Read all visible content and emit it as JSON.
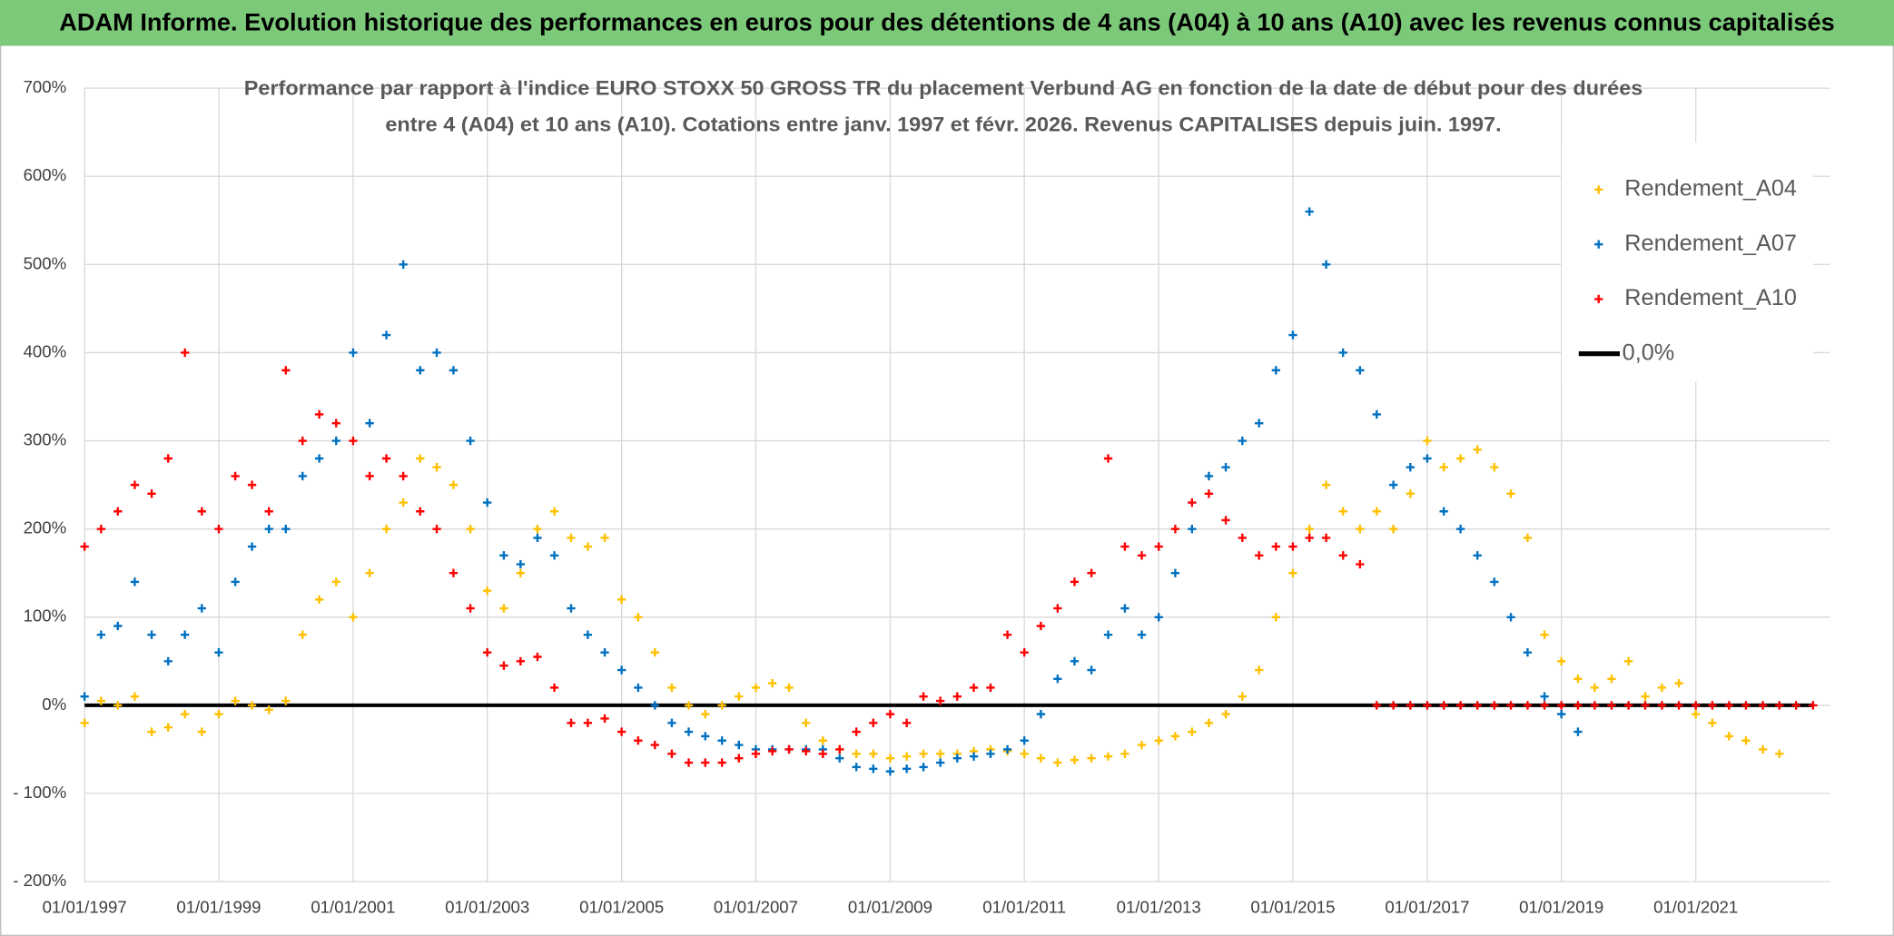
{
  "chart_data": {
    "type": "scatter",
    "title": "ADAM Informe. Evolution historique des performances en euros pour des détentions de 4 ans (A04) à 10 ans (A10) avec les revenus connus capitalisés",
    "subtitle": [
      "Performance par rapport à l'indice EURO STOXX 50 GROSS TR  du placement Verbund AG en fonction de la date de début pour des durées",
      "entre 4 (A04) et 10 ans (A10). Cotations entre janv. 1997 et févr. 2026. Revenus CAPITALISES depuis juin. 1997."
    ],
    "x": [
      "1997-01-01",
      "1997-04-01",
      "1997-07-01",
      "1997-10-01",
      "1998-01-01",
      "1998-04-01",
      "1998-07-01",
      "1998-10-01",
      "1999-01-01",
      "1999-04-01",
      "1999-07-01",
      "1999-10-01",
      "2000-01-01",
      "2000-04-01",
      "2000-07-01",
      "2000-10-01",
      "2001-01-01",
      "2001-04-01",
      "2001-07-01",
      "2001-10-01",
      "2002-01-01",
      "2002-04-01",
      "2002-07-01",
      "2002-10-01",
      "2003-01-01",
      "2003-04-01",
      "2003-07-01",
      "2003-10-01",
      "2004-01-01",
      "2004-04-01",
      "2004-07-01",
      "2004-10-01",
      "2005-01-01",
      "2005-04-01",
      "2005-07-01",
      "2005-10-01",
      "2006-01-01",
      "2006-04-01",
      "2006-07-01",
      "2006-10-01",
      "2007-01-01",
      "2007-04-01",
      "2007-07-01",
      "2007-10-01",
      "2008-01-01",
      "2008-04-01",
      "2008-07-01",
      "2008-10-01",
      "2009-01-01",
      "2009-04-01",
      "2009-07-01",
      "2009-10-01",
      "2010-01-01",
      "2010-04-01",
      "2010-07-01",
      "2010-10-01",
      "2011-01-01",
      "2011-04-01",
      "2011-07-01",
      "2011-10-01",
      "2012-01-01",
      "2012-04-01",
      "2012-07-01",
      "2012-10-01",
      "2013-01-01",
      "2013-04-01",
      "2013-07-01",
      "2013-10-01",
      "2014-01-01",
      "2014-04-01",
      "2014-07-01",
      "2014-10-01",
      "2015-01-01",
      "2015-04-01",
      "2015-07-01",
      "2015-10-01",
      "2016-01-01",
      "2016-04-01",
      "2016-07-01",
      "2016-10-01",
      "2017-01-01",
      "2017-04-01",
      "2017-07-01",
      "2017-10-01",
      "2018-01-01",
      "2018-04-01",
      "2018-07-01",
      "2018-10-01",
      "2019-01-01",
      "2019-04-01",
      "2019-07-01",
      "2019-10-01",
      "2020-01-01",
      "2020-04-01",
      "2020-07-01",
      "2020-10-01",
      "2021-01-01",
      "2021-04-01",
      "2021-07-01",
      "2021-10-01",
      "2022-01-01",
      "2022-04-01",
      "2022-07-01",
      "2022-10-01"
    ],
    "series": [
      {
        "name": "Rendement_A04",
        "color": "#ffc000",
        "values": [
          -20,
          5,
          0,
          10,
          -30,
          -25,
          -10,
          -30,
          -10,
          5,
          0,
          -5,
          5,
          80,
          120,
          140,
          100,
          150,
          200,
          230,
          280,
          270,
          250,
          200,
          130,
          110,
          150,
          200,
          220,
          190,
          180,
          190,
          120,
          100,
          60,
          20,
          0,
          -10,
          0,
          10,
          20,
          25,
          20,
          -20,
          -40,
          -50,
          -55,
          -55,
          -60,
          -58,
          -55,
          -55,
          -55,
          -52,
          -50,
          -52,
          -55,
          -60,
          -65,
          -62,
          -60,
          -58,
          -55,
          -45,
          -40,
          -35,
          -30,
          -20,
          -10,
          10,
          40,
          100,
          150,
          200,
          250,
          220,
          200,
          220,
          200,
          240,
          300,
          270,
          280,
          290,
          270,
          240,
          190,
          80,
          50,
          30,
          20,
          30,
          50,
          10,
          20,
          25,
          -10,
          -20,
          -35,
          -40,
          -50,
          -55,
          null,
          null
        ]
      },
      {
        "name": "Rendement_A07",
        "color": "#0070c0",
        "values": [
          10,
          80,
          90,
          140,
          80,
          50,
          80,
          110,
          60,
          140,
          180,
          200,
          200,
          260,
          280,
          300,
          400,
          320,
          420,
          500,
          380,
          400,
          380,
          300,
          230,
          170,
          160,
          190,
          170,
          110,
          80,
          60,
          40,
          20,
          0,
          -20,
          -30,
          -35,
          -40,
          -45,
          -50,
          -50,
          -50,
          -50,
          -50,
          -60,
          -70,
          -72,
          -75,
          -72,
          -70,
          -65,
          -60,
          -58,
          -55,
          -50,
          -40,
          -10,
          30,
          50,
          40,
          80,
          110,
          80,
          100,
          150,
          200,
          260,
          270,
          300,
          320,
          380,
          420,
          560,
          500,
          400,
          380,
          330,
          250,
          270,
          280,
          220,
          200,
          170,
          140,
          100,
          60,
          10,
          -10,
          -30,
          null,
          null,
          null,
          null,
          null,
          null,
          null,
          null,
          null,
          null,
          null,
          null,
          null,
          null
        ]
      },
      {
        "name": "Rendement_A10",
        "color": "#ff0000",
        "values": [
          180,
          200,
          220,
          250,
          240,
          280,
          400,
          220,
          200,
          260,
          250,
          220,
          380,
          300,
          330,
          320,
          300,
          260,
          280,
          260,
          220,
          200,
          150,
          110,
          60,
          45,
          50,
          55,
          20,
          -20,
          -20,
          -15,
          -30,
          -40,
          -45,
          -55,
          -65,
          -65,
          -65,
          -60,
          -55,
          -52,
          -50,
          -52,
          -55,
          -50,
          -30,
          -20,
          -10,
          -20,
          10,
          5,
          10,
          20,
          20,
          80,
          60,
          90,
          110,
          140,
          150,
          280,
          180,
          170,
          180,
          200,
          230,
          240,
          210,
          190,
          170,
          180,
          180,
          190,
          190,
          170,
          160,
          0,
          0,
          0,
          0,
          0,
          0,
          0,
          0,
          0,
          0,
          0,
          0,
          0,
          0,
          0,
          0,
          0,
          0,
          0,
          0,
          0,
          0,
          0,
          0,
          0,
          0,
          0
        ]
      },
      {
        "name": "0,0%",
        "color": "#000000",
        "type": "line",
        "x": [
          "1997-01-01",
          "2022-10-01"
        ],
        "values": [
          0,
          0
        ]
      }
    ],
    "xlim": [
      "1997-01-01",
      "2023-01-01"
    ],
    "xticks": [
      {
        "value": "1997-01-01",
        "label": "01/01/1997"
      },
      {
        "value": "1999-01-01",
        "label": "01/01/1999"
      },
      {
        "value": "2001-01-01",
        "label": "01/01/2001"
      },
      {
        "value": "2003-01-01",
        "label": "01/01/2003"
      },
      {
        "value": "2005-01-01",
        "label": "01/01/2005"
      },
      {
        "value": "2007-01-01",
        "label": "01/01/2007"
      },
      {
        "value": "2009-01-01",
        "label": "01/01/2009"
      },
      {
        "value": "2011-01-01",
        "label": "01/01/2011"
      },
      {
        "value": "2013-01-01",
        "label": "01/01/2013"
      },
      {
        "value": "2015-01-01",
        "label": "01/01/2015"
      },
      {
        "value": "2017-01-01",
        "label": "01/01/2017"
      },
      {
        "value": "2019-01-01",
        "label": "01/01/2019"
      },
      {
        "value": "2021-01-01",
        "label": "01/01/2021"
      }
    ],
    "ylim": [
      -200,
      700
    ],
    "yticks": [
      {
        "value": -200,
        "label": "- 200%"
      },
      {
        "value": -100,
        "label": "- 100%"
      },
      {
        "value": 0,
        "label": "0%"
      },
      {
        "value": 100,
        "label": "100%"
      },
      {
        "value": 200,
        "label": "200%"
      },
      {
        "value": 300,
        "label": "300%"
      },
      {
        "value": 400,
        "label": "400%"
      },
      {
        "value": 500,
        "label": "500%"
      },
      {
        "value": 600,
        "label": "600%"
      },
      {
        "value": 700,
        "label": "700%"
      }
    ],
    "grid": true,
    "legend": "top-right"
  }
}
